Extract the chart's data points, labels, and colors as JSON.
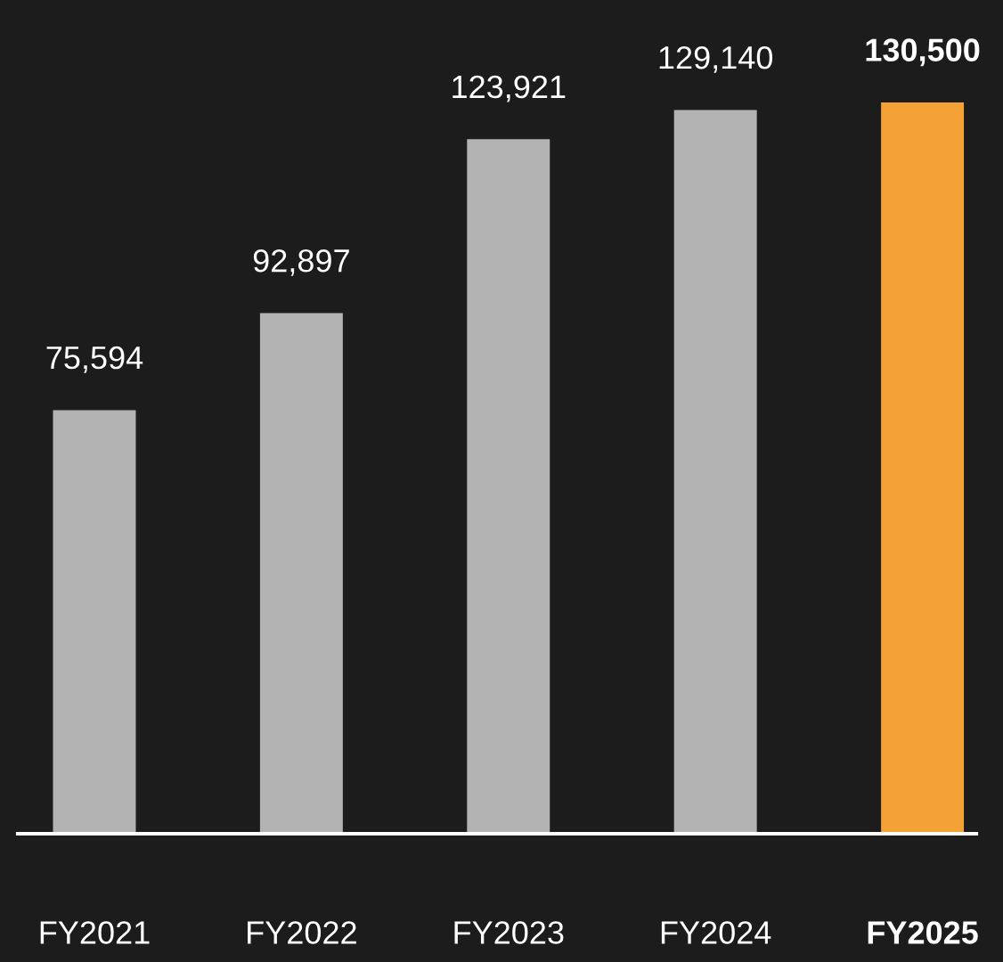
{
  "chart_data": {
    "type": "bar",
    "categories": [
      "FY2021",
      "FY2022",
      "FY2023",
      "FY2024",
      "FY2025"
    ],
    "values": [
      75594,
      92897,
      123921,
      129140,
      130500
    ],
    "value_labels": [
      "75,594",
      "92,897",
      "123,921",
      "129,140",
      "130,500"
    ],
    "colors": [
      "#b3b3b3",
      "#b3b3b3",
      "#b3b3b3",
      "#b3b3b3",
      "#f4a236"
    ],
    "grid": false,
    "legend": false
  }
}
